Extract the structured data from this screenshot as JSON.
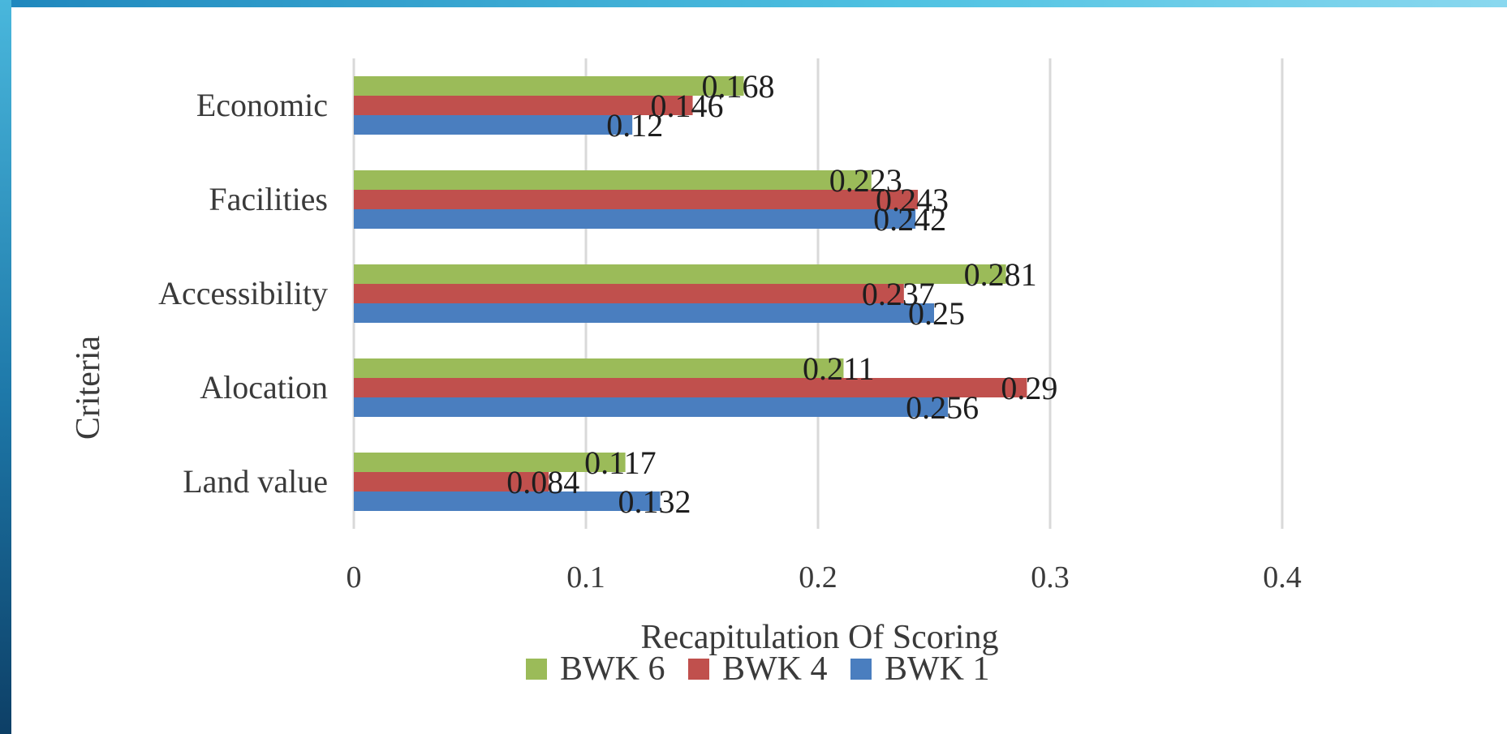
{
  "chart_data": {
    "type": "bar",
    "orientation": "horizontal",
    "categories": [
      "Land value",
      "Alocation",
      "Accessibility",
      "Facilities",
      "Economic"
    ],
    "series": [
      {
        "name": "BWK 1",
        "color": "#4a7ebf",
        "values": [
          0.132,
          0.256,
          0.25,
          0.242,
          0.12
        ],
        "labels": [
          "0.132",
          "0.256",
          "0.25",
          "0.242",
          "0.12"
        ]
      },
      {
        "name": "BWK 4",
        "color": "#c0504d",
        "values": [
          0.084,
          0.29,
          0.237,
          0.243,
          0.146
        ],
        "labels": [
          "0.084",
          "0.29",
          "0.237",
          "0.243",
          "0.146"
        ]
      },
      {
        "name": "BWK 6",
        "color": "#9bbb59",
        "values": [
          0.117,
          0.211,
          0.281,
          0.223,
          0.168
        ],
        "labels": [
          "0.117",
          "0.211",
          "0.281",
          "0.223",
          "0.168"
        ]
      }
    ],
    "xlabel": "Recapitulation Of Scoring",
    "ylabel": "Criteria",
    "xlim": [
      0,
      0.5
    ],
    "xticks": [
      0,
      0.1,
      0.2,
      0.3,
      0.4
    ],
    "xtick_labels": [
      "0",
      "0.1",
      "0.2",
      "0.3",
      "0.4"
    ],
    "grid": "vertical",
    "legend_position": "bottom",
    "legend_order": [
      "BWK 6",
      "BWK 4",
      "BWK 1"
    ]
  }
}
